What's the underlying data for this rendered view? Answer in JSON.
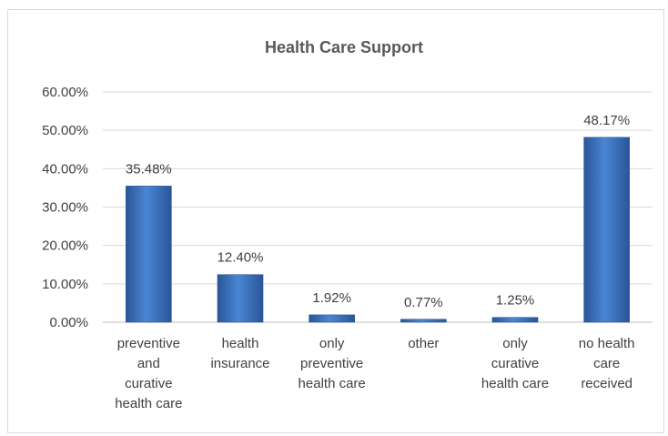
{
  "chart_data": {
    "type": "bar",
    "title": "Health Care Support",
    "categories": [
      [
        "preventive",
        "and",
        "curative",
        "health care"
      ],
      [
        "health",
        "insurance"
      ],
      [
        "only",
        "preventive",
        "health care"
      ],
      [
        "other"
      ],
      [
        "only",
        "curative",
        "health care"
      ],
      [
        "no health",
        "care",
        "received"
      ]
    ],
    "values": [
      35.48,
      12.4,
      1.92,
      0.77,
      1.25,
      48.17
    ],
    "data_labels": [
      "35.48%",
      "12.40%",
      "1.92%",
      "0.77%",
      "1.25%",
      "48.17%"
    ],
    "y_ticks": [
      "0.00%",
      "10.00%",
      "20.00%",
      "30.00%",
      "40.00%",
      "50.00%",
      "60.00%"
    ],
    "ylim": [
      0,
      60
    ],
    "grid": true,
    "legend": "none",
    "bar_color": "#3a6fbf"
  }
}
